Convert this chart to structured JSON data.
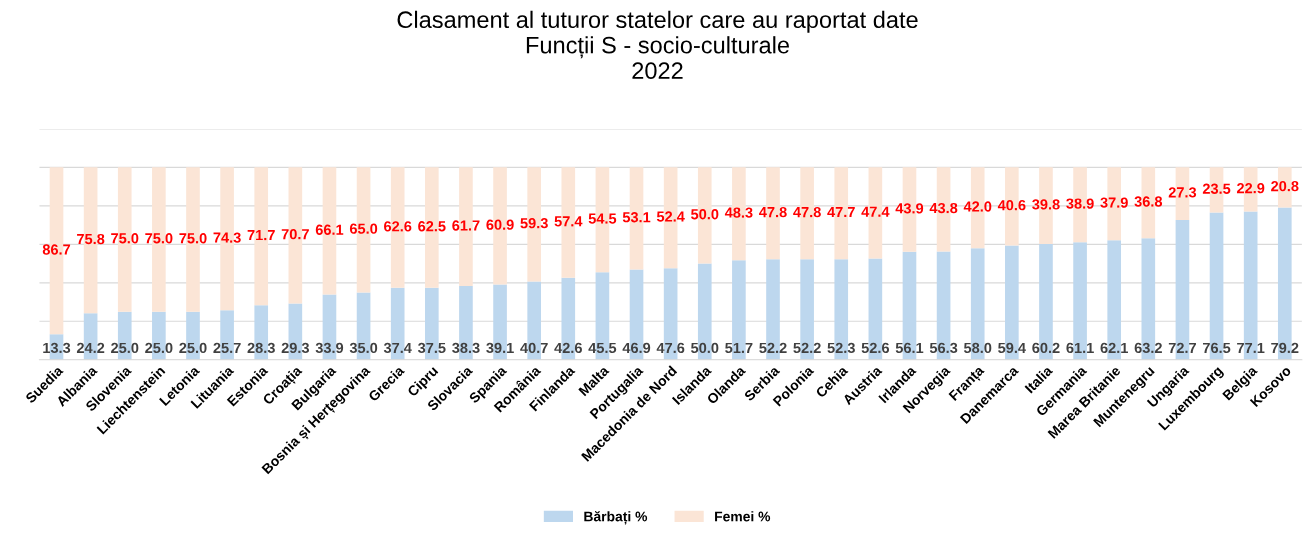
{
  "chart_data": {
    "type": "bar",
    "title": "Clasament al tuturor statelor care au raportat date\nFuncții S - socio-culturale\n2022",
    "categories": [
      "Suedia",
      "Albania",
      "Slovenia",
      "Liechtenstein",
      "Letonia",
      "Lituania",
      "Estonia",
      "Croația",
      "Bulgaria",
      "Bosnia și Herțegovina",
      "Grecia",
      "Cipru",
      "Slovacia",
      "Spania",
      "România",
      "Finlanda",
      "Malta",
      "Portugalia",
      "Macedonia de Nord",
      "Islanda",
      "Olanda",
      "Serbia",
      "Polonia",
      "Cehia",
      "Austria",
      "Irlanda",
      "Norvegia",
      "Franța",
      "Danemarca",
      "Italia",
      "Germania",
      "Marea Britanie",
      "Muntenegru",
      "Ungaria",
      "Luxembourg",
      "Belgia",
      "Kosovo"
    ],
    "series": [
      {
        "name": "Bărbați %",
        "color": "#bdd7ee",
        "values": [
          13.3,
          24.2,
          25.0,
          25.0,
          25.0,
          25.7,
          28.3,
          29.3,
          33.9,
          35.0,
          37.4,
          37.5,
          38.3,
          39.1,
          40.7,
          42.6,
          45.5,
          46.9,
          47.6,
          50.0,
          51.7,
          52.2,
          52.2,
          52.3,
          52.6,
          56.1,
          56.3,
          58.0,
          59.4,
          60.2,
          61.1,
          62.1,
          63.2,
          72.7,
          76.5,
          77.1,
          79.2
        ],
        "value_labels": [
          "13.3",
          "24.2",
          "25.0",
          "25.0",
          "25.0",
          "25.7",
          "28.3",
          "29.3",
          "33.9",
          "35.0",
          "37.4",
          "37.5",
          "38.3",
          "39.1",
          "40.7",
          "42.6",
          "45.5",
          "46.9",
          "47.6",
          "50.0",
          "51.7",
          "52.2",
          "52.2",
          "52.3",
          "52.6",
          "56.1",
          "56.3",
          "58.0",
          "59.4",
          "60.2",
          "61.1",
          "62.1",
          "63.2",
          "72.7",
          "76.5",
          "77.1",
          "79.2"
        ]
      },
      {
        "name": "Femei %",
        "color": "#fbe5d6",
        "values": [
          86.7,
          75.8,
          75.0,
          75.0,
          75.0,
          74.3,
          71.7,
          70.7,
          66.1,
          65.0,
          62.6,
          62.5,
          61.7,
          60.9,
          59.3,
          57.4,
          54.5,
          53.1,
          52.4,
          50.0,
          48.3,
          47.8,
          47.8,
          47.7,
          47.4,
          43.9,
          43.8,
          42.0,
          40.6,
          39.8,
          38.9,
          37.9,
          36.8,
          27.3,
          23.5,
          22.9,
          20.8
        ],
        "value_labels": [
          "86.7",
          "75.8",
          "75.0",
          "75.0",
          "75.0",
          "74.3",
          "71.7",
          "70.7",
          "66.1",
          "65.0",
          "62.6",
          "62.5",
          "61.7",
          "60.9",
          "59.3",
          "57.4",
          "54.5",
          "53.1",
          "52.4",
          "50.0",
          "48.3",
          "47.8",
          "47.8",
          "47.7",
          "47.4",
          "43.9",
          "43.8",
          "42.0",
          "40.6",
          "39.8",
          "38.9",
          "37.9",
          "36.8",
          "27.3",
          "23.5",
          "22.9",
          "20.8"
        ]
      }
    ],
    "stacked": true,
    "legend": "bottom",
    "grid": "y",
    "tick_labels": "x",
    "ylim": [
      0,
      120
    ],
    "yticks": [
      {
        "value": 0,
        "label": null
      },
      {
        "value": 20,
        "label": null
      },
      {
        "value": 40,
        "label": null
      },
      {
        "value": 60,
        "label": null
      },
      {
        "value": 80,
        "label": null
      },
      {
        "value": 100,
        "label": null
      },
      {
        "value": 120,
        "label": null
      }
    ]
  }
}
